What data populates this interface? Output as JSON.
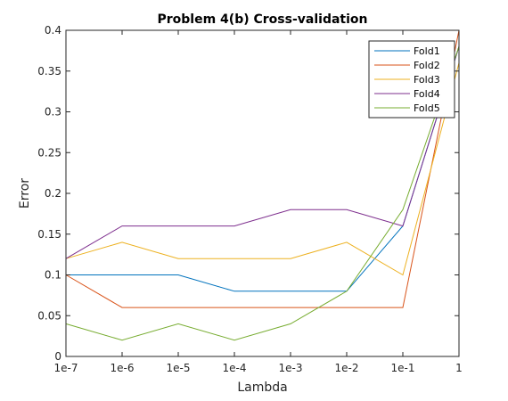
{
  "chart_data": {
    "type": "line",
    "title": "Problem 4(b) Cross-validation",
    "xlabel": "Lambda",
    "ylabel": "Error",
    "categories": [
      "1e-7",
      "1e-6",
      "1e-5",
      "1e-4",
      "1e-3",
      "1e-2",
      "1e-1",
      "1"
    ],
    "ylim": [
      0,
      0.4
    ],
    "yticks": [
      0,
      0.05,
      0.1,
      0.15,
      0.2,
      0.25,
      0.3,
      0.35,
      0.4
    ],
    "ytick_labels": [
      "0",
      "0.05",
      "0.1",
      "0.15",
      "0.2",
      "0.25",
      "0.3",
      "0.35",
      "0.4"
    ],
    "grid": false,
    "legend_position": "top-right",
    "series": [
      {
        "name": "Fold1",
        "color": "#0072BD",
        "values": [
          0.1,
          0.1,
          0.1,
          0.08,
          0.08,
          0.08,
          0.16,
          0.38
        ]
      },
      {
        "name": "Fold2",
        "color": "#D95319",
        "values": [
          0.1,
          0.06,
          0.06,
          0.06,
          0.06,
          0.06,
          0.06,
          0.4
        ]
      },
      {
        "name": "Fold3",
        "color": "#EDB120",
        "values": [
          0.12,
          0.14,
          0.12,
          0.12,
          0.12,
          0.14,
          0.1,
          0.36
        ]
      },
      {
        "name": "Fold4",
        "color": "#7E2F8E",
        "values": [
          0.12,
          0.16,
          0.16,
          0.16,
          0.18,
          0.18,
          0.16,
          0.38
        ]
      },
      {
        "name": "Fold5",
        "color": "#77AC30",
        "values": [
          0.04,
          0.02,
          0.04,
          0.02,
          0.04,
          0.08,
          0.18,
          0.38
        ]
      }
    ]
  }
}
